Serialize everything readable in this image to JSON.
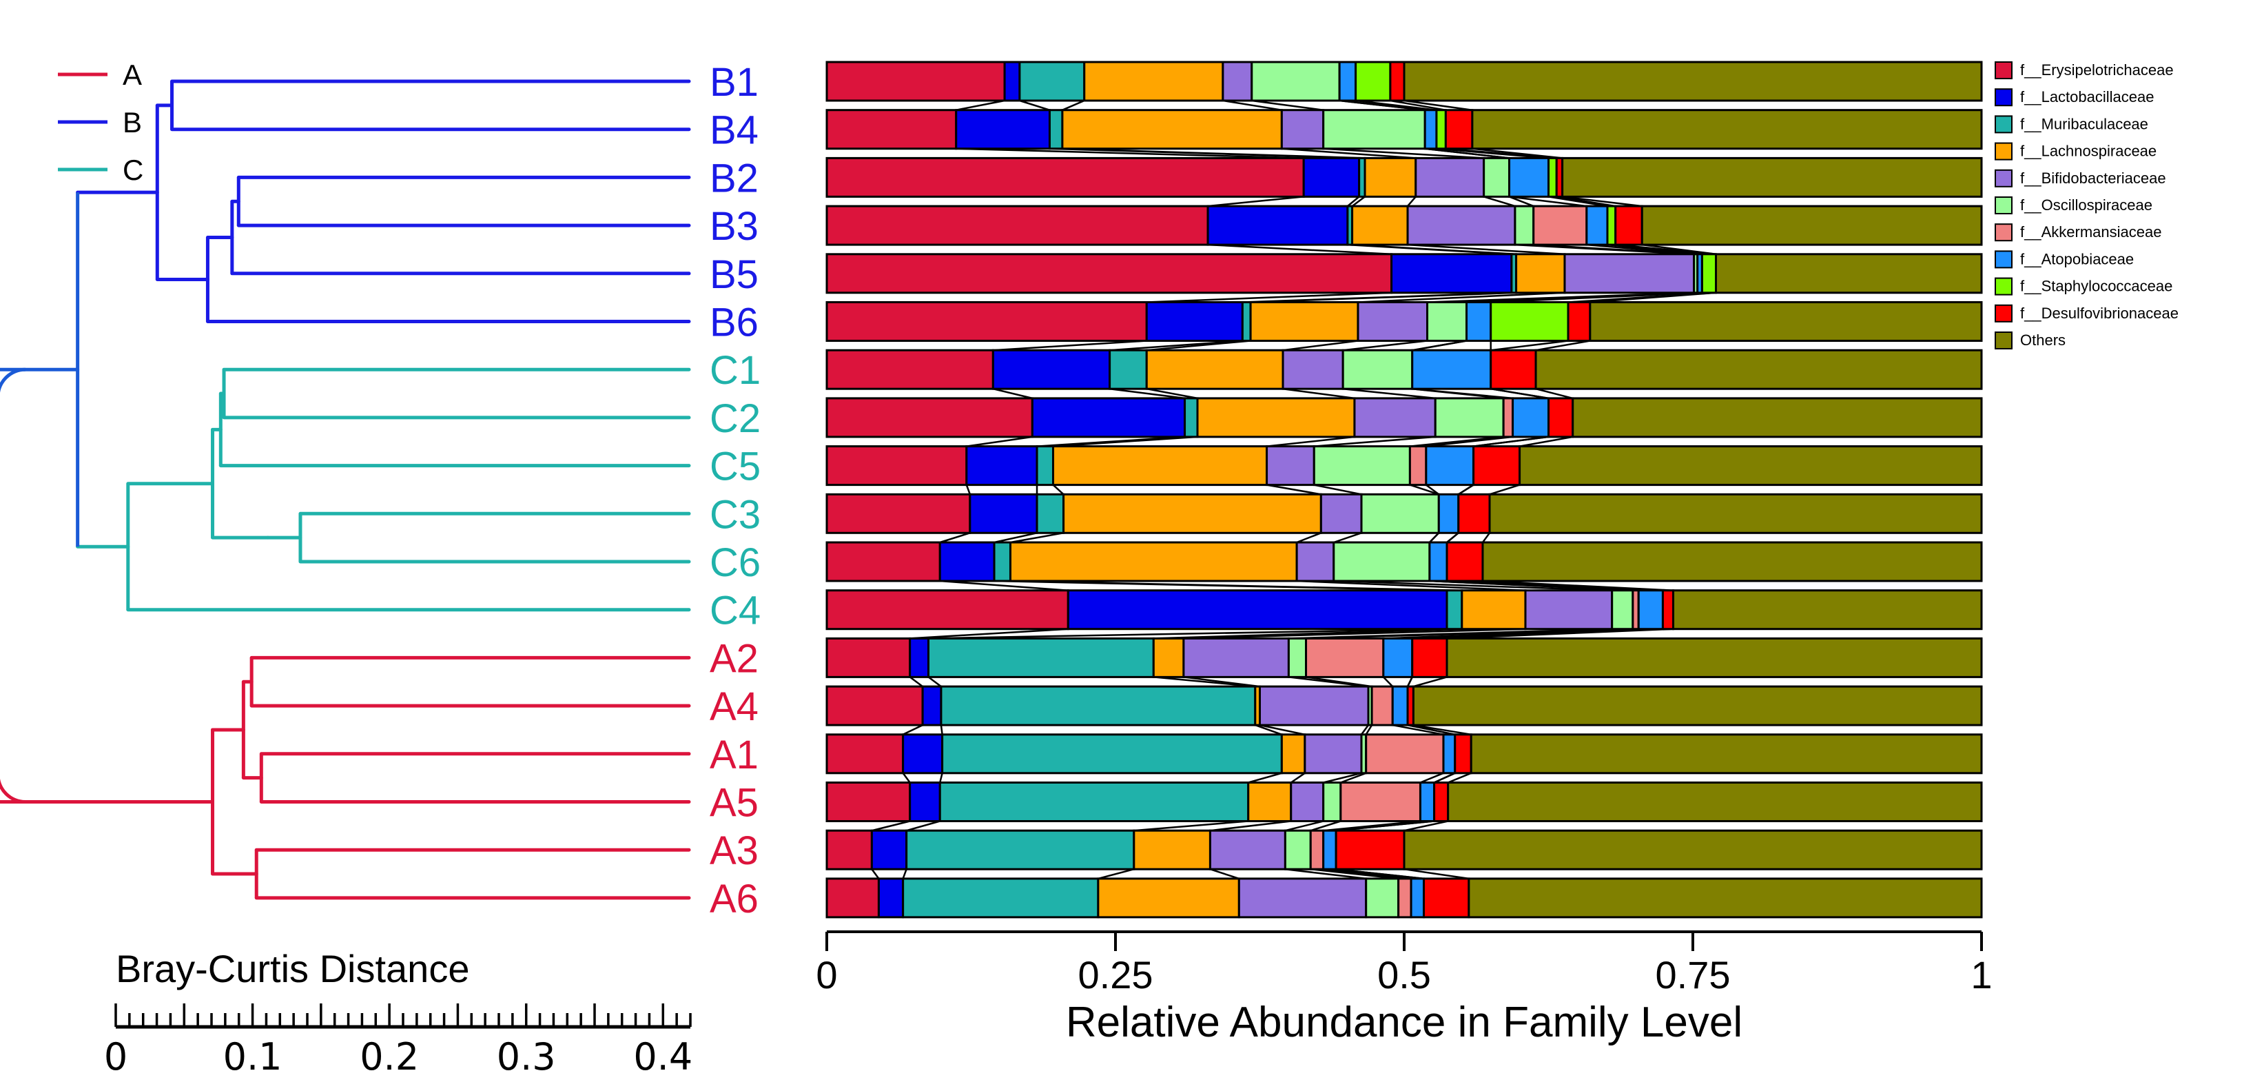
{
  "chart_data": {
    "type": "bar",
    "orientation": "horizontal",
    "stacked": true,
    "xlabel": "Relative Abundance in Family Level",
    "xlim": [
      0,
      1
    ],
    "xticks": [
      "0",
      "0.25",
      "0.5",
      "0.75",
      "1"
    ],
    "groups": [
      {
        "name": "A",
        "color": "#dc143c"
      },
      {
        "name": "B",
        "color": "#1a1ae6"
      },
      {
        "name": "C",
        "color": "#20b2aa"
      }
    ],
    "samples": [
      {
        "name": "B1",
        "group": "B",
        "values": [
          0.154,
          0.013,
          0.056,
          0.12,
          0.025,
          0.076,
          0,
          0.014,
          0.03,
          0.012,
          0.5
        ]
      },
      {
        "name": "B4",
        "group": "B",
        "values": [
          0.112,
          0.081,
          0.011,
          0.19,
          0.036,
          0.088,
          0,
          0.01,
          0.008,
          0.023,
          0.441
        ]
      },
      {
        "name": "B2",
        "group": "B",
        "values": [
          0.413,
          0.048,
          0.005,
          0.044,
          0.059,
          0.022,
          0,
          0.034,
          0.007,
          0.005,
          0.363
        ]
      },
      {
        "name": "B3",
        "group": "B",
        "values": [
          0.33,
          0.121,
          0.004,
          0.048,
          0.093,
          0.016,
          0.046,
          0.018,
          0.007,
          0.023,
          0.294
        ]
      },
      {
        "name": "B5",
        "group": "B",
        "values": [
          0.489,
          0.104,
          0.004,
          0.042,
          0.112,
          0.003,
          0,
          0.004,
          0.012,
          0,
          0.23
        ]
      },
      {
        "name": "B6",
        "group": "B",
        "values": [
          0.277,
          0.083,
          0.007,
          0.093,
          0.06,
          0.034,
          0,
          0.021,
          0.067,
          0.019,
          0.339
        ]
      },
      {
        "name": "C1",
        "group": "C",
        "values": [
          0.144,
          0.101,
          0.032,
          0.118,
          0.052,
          0.06,
          0,
          0.068,
          0,
          0.039,
          0.386
        ]
      },
      {
        "name": "C2",
        "group": "C",
        "values": [
          0.178,
          0.132,
          0.011,
          0.136,
          0.07,
          0.059,
          0.008,
          0.031,
          0,
          0.021,
          0.354
        ]
      },
      {
        "name": "C5",
        "group": "C",
        "values": [
          0.121,
          0.061,
          0.014,
          0.185,
          0.041,
          0.083,
          0.014,
          0.041,
          0,
          0.04,
          0.4
        ]
      },
      {
        "name": "C3",
        "group": "C",
        "values": [
          0.124,
          0.058,
          0.023,
          0.223,
          0.035,
          0.067,
          0,
          0.017,
          0,
          0.027,
          0.426
        ]
      },
      {
        "name": "C6",
        "group": "C",
        "values": [
          0.098,
          0.047,
          0.014,
          0.248,
          0.032,
          0.083,
          0,
          0.015,
          0,
          0.031,
          0.432
        ]
      },
      {
        "name": "C4",
        "group": "C",
        "values": [
          0.209,
          0.328,
          0.013,
          0.055,
          0.075,
          0.018,
          0.005,
          0.021,
          0,
          0.009,
          0.267
        ]
      },
      {
        "name": "A2",
        "group": "A",
        "values": [
          0.072,
          0.016,
          0.195,
          0.026,
          0.091,
          0.015,
          0.067,
          0.025,
          0,
          0.03,
          0.463
        ]
      },
      {
        "name": "A4",
        "group": "A",
        "values": [
          0.083,
          0.016,
          0.272,
          0.004,
          0.094,
          0.003,
          0.018,
          0.013,
          0,
          0.005,
          0.492
        ]
      },
      {
        "name": "A1",
        "group": "A",
        "values": [
          0.066,
          0.034,
          0.294,
          0.02,
          0.049,
          0.004,
          0.067,
          0.01,
          0,
          0.014,
          0.442
        ]
      },
      {
        "name": "A5",
        "group": "A",
        "values": [
          0.072,
          0.026,
          0.267,
          0.037,
          0.028,
          0.015,
          0.069,
          0.012,
          0,
          0.012,
          0.462
        ]
      },
      {
        "name": "A3",
        "group": "A",
        "values": [
          0.039,
          0.03,
          0.197,
          0.066,
          0.065,
          0.022,
          0.011,
          0.011,
          0,
          0.059,
          0.5
        ]
      },
      {
        "name": "A6",
        "group": "A",
        "values": [
          0.045,
          0.021,
          0.169,
          0.122,
          0.11,
          0.028,
          0.011,
          0.011,
          0,
          0.039,
          0.444
        ]
      }
    ],
    "legend": [
      {
        "name": "f__Erysipelotrichaceae",
        "color": "#dc143c"
      },
      {
        "name": "f__Lactobacillaceae",
        "color": "#0000ee"
      },
      {
        "name": "f__Muribaculaceae",
        "color": "#20b2aa"
      },
      {
        "name": "f__Lachnospiraceae",
        "color": "#ffa500"
      },
      {
        "name": "f__Bifidobacteriaceae",
        "color": "#9370db"
      },
      {
        "name": "f__Oscillospiraceae",
        "color": "#98fb98"
      },
      {
        "name": "f__Akkermansiaceae",
        "color": "#f08080"
      },
      {
        "name": "f__Atopobiaceae",
        "color": "#1e90ff"
      },
      {
        "name": "f__Staphylococcaceae",
        "color": "#7cfc00"
      },
      {
        "name": "f__Desulfovibrionaceae",
        "color": "#ff0000"
      },
      {
        "name": "Others",
        "color": "#808000"
      }
    ],
    "legend_position": "top-right"
  },
  "dendrogram": {
    "scale_title": "Bray-Curtis Distance",
    "scale_ticks": [
      "0",
      "0.1",
      "0.2",
      "0.3",
      "0.4"
    ],
    "scale_max": 0.42
  }
}
